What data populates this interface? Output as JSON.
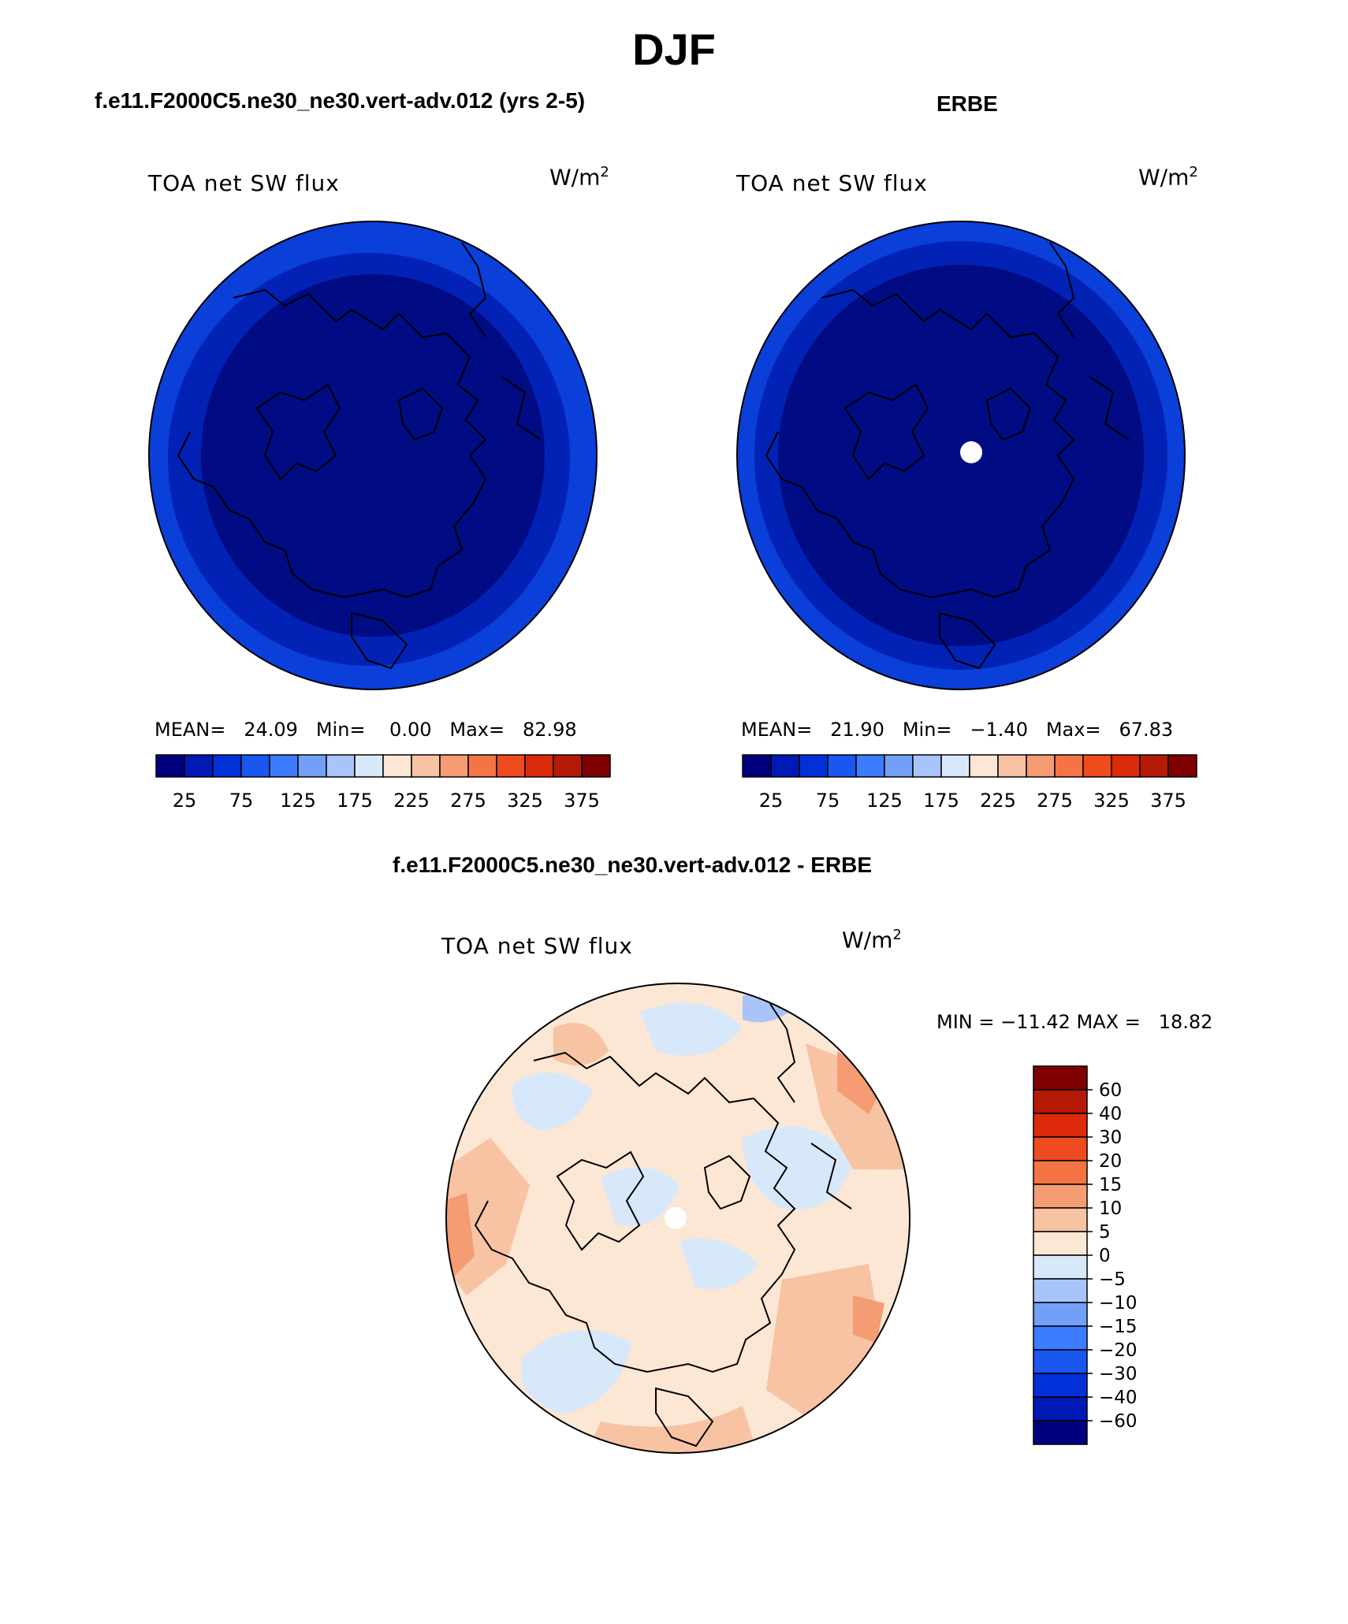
{
  "figure": {
    "title": "DJF",
    "difference_title": "f.e11.F2000C5.ne30_ne30.vert-adv.012 - ERBE"
  },
  "panels": [
    {
      "header": "f.e11.F2000C5.ne30_ne30.vert-adv.012 (yrs 2-5)",
      "variable": "TOA net SW flux",
      "units": "W/m",
      "units_sup": "2",
      "stats": "MEAN=   24.09   Min=    0.00   Max=   82.98"
    },
    {
      "header": "ERBE",
      "variable": "TOA net SW flux",
      "units": "W/m",
      "units_sup": "2",
      "stats": "MEAN=   21.90   Min=   −1.40   Max=   67.83"
    },
    {
      "variable": "TOA net SW flux",
      "units": "W/m",
      "units_sup": "2",
      "stats": "MIN = −11.42 MAX =   18.82"
    }
  ],
  "colorbar_main": {
    "labels": [
      "25",
      "75",
      "125",
      "175",
      "225",
      "275",
      "325",
      "375"
    ],
    "colors": [
      "#00007f",
      "#0018b4",
      "#0030d8",
      "#1a56f0",
      "#3d7bff",
      "#739ff7",
      "#a8c4fa",
      "#d8e8fb",
      "#fce6d4",
      "#f8c3a3",
      "#f59c74",
      "#f57445",
      "#f04a1f",
      "#dd2a0a",
      "#b51a06",
      "#7f0000"
    ]
  },
  "colorbar_diff": {
    "labels": [
      "60",
      "40",
      "30",
      "20",
      "15",
      "10",
      "5",
      "0",
      "−5",
      "−10",
      "−15",
      "−20",
      "−30",
      "−40",
      "−60"
    ],
    "colors": [
      "#7f0000",
      "#b51a06",
      "#dd2a0a",
      "#f04a1f",
      "#f57445",
      "#f59c74",
      "#f8c3a3",
      "#fce6d4",
      "#d8e8fb",
      "#a8c4fa",
      "#739ff7",
      "#3d7bff",
      "#1a56f0",
      "#0030d8",
      "#0018b4",
      "#00007f"
    ]
  },
  "map_colors": {
    "deep": "#000b84",
    "mid": "#0222b5",
    "outer": "#0a3fd9",
    "diff_base": "#fce6d4",
    "diff_pos": "#f8c3a3",
    "diff_pos_strong": "#f59c74",
    "diff_neg": "#d8e8fb",
    "diff_neg_strong": "#a8c4fa"
  }
}
